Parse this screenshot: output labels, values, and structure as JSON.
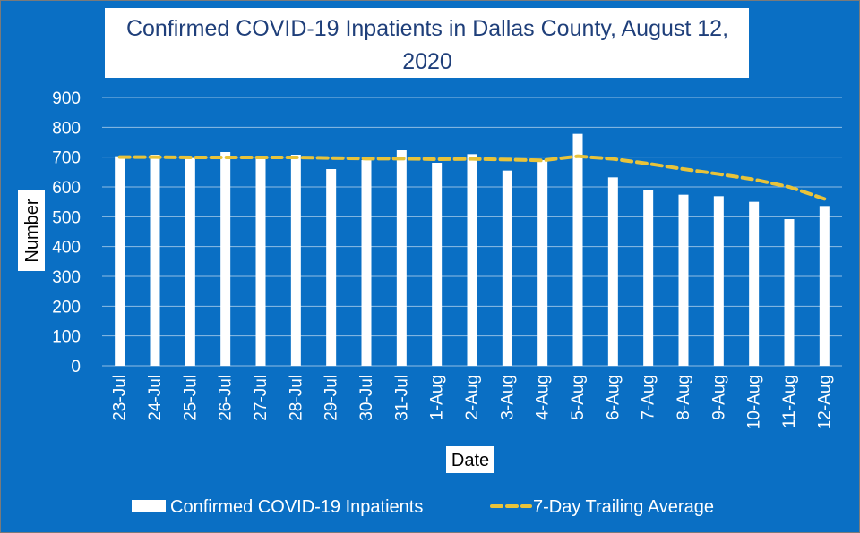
{
  "chart_data": {
    "type": "bar",
    "title": "Confirmed COVID-19 Inpatients in Dallas County, August 12, 2020",
    "title_lines": [
      "Confirmed COVID-19 Inpatients in Dallas County, August 12,",
      "2020"
    ],
    "xlabel": "Date",
    "ylabel": "Number",
    "ylim": [
      0,
      900
    ],
    "yticks": [
      0,
      100,
      200,
      300,
      400,
      500,
      600,
      700,
      800,
      900
    ],
    "grid": true,
    "legend_position": "bottom",
    "categories": [
      "23-Jul",
      "24-Jul",
      "25-Jul",
      "26-Jul",
      "27-Jul",
      "28-Jul",
      "29-Jul",
      "30-Jul",
      "31-Jul",
      "1-Aug",
      "2-Aug",
      "3-Aug",
      "4-Aug",
      "5-Aug",
      "6-Aug",
      "7-Aug",
      "8-Aug",
      "9-Aug",
      "10-Aug",
      "11-Aug",
      "12-Aug"
    ],
    "series": [
      {
        "name": "Confirmed COVID-19 Inpatients",
        "type": "bar",
        "color": "#ffffff",
        "values": [
          703,
          708,
          697,
          717,
          702,
          708,
          660,
          690,
          723,
          681,
          710,
          655,
          690,
          778,
          632,
          590,
          574,
          569,
          550,
          492,
          536
        ]
      },
      {
        "name": "7-Day Trailing Average",
        "type": "line",
        "style": "dashed",
        "color": "#e8c33a",
        "values": [
          700,
          700,
          699,
          699,
          699,
          699,
          697,
          695,
          695,
          693,
          694,
          692,
          689,
          703,
          694,
          678,
          660,
          643,
          625,
          600,
          560
        ]
      }
    ]
  },
  "colors": {
    "background": "#0a6fc4",
    "text": "#ffffff",
    "average_line": "#e8c33a"
  }
}
